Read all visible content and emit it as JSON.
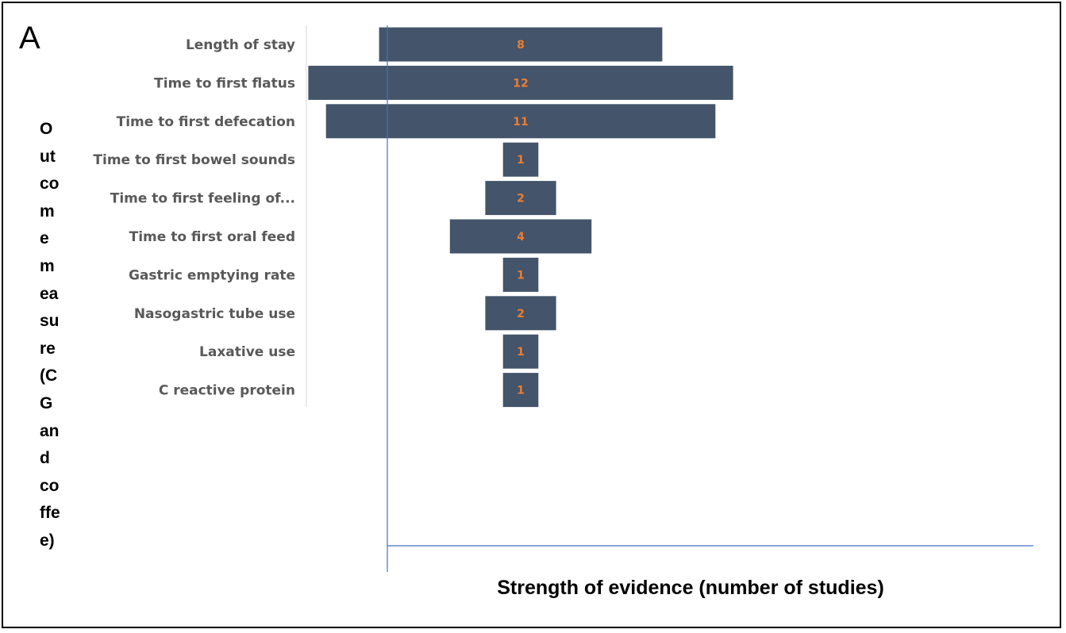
{
  "panel_label": "A",
  "chart_data": {
    "type": "bar",
    "orientation": "horizontal",
    "alignment": "centered",
    "categories": [
      "Length of stay",
      "Time to first flatus",
      "Time to first defecation",
      "Time to first bowel sounds",
      "Time to first feeling of...",
      "Time to first oral feed",
      "Gastric emptying rate",
      "Nasogastric tube use",
      "Laxative use",
      "C reactive protein"
    ],
    "values": [
      8,
      12,
      11,
      1,
      2,
      4,
      1,
      2,
      1,
      1
    ],
    "xlabel": "Strength of evidence (number of studies)",
    "ylabel_lines": [
      "O",
      "ut",
      "co",
      "m",
      "e",
      "m",
      "ea",
      "su",
      "re",
      "(C",
      "G",
      "an",
      "d",
      "co",
      "ffe",
      "e)"
    ],
    "bar_color": "#44546a",
    "value_label_color": "#ed7d31",
    "category_label_color": "#595959",
    "axis_color": "#4472c4",
    "grid": false,
    "legend": "none"
  }
}
